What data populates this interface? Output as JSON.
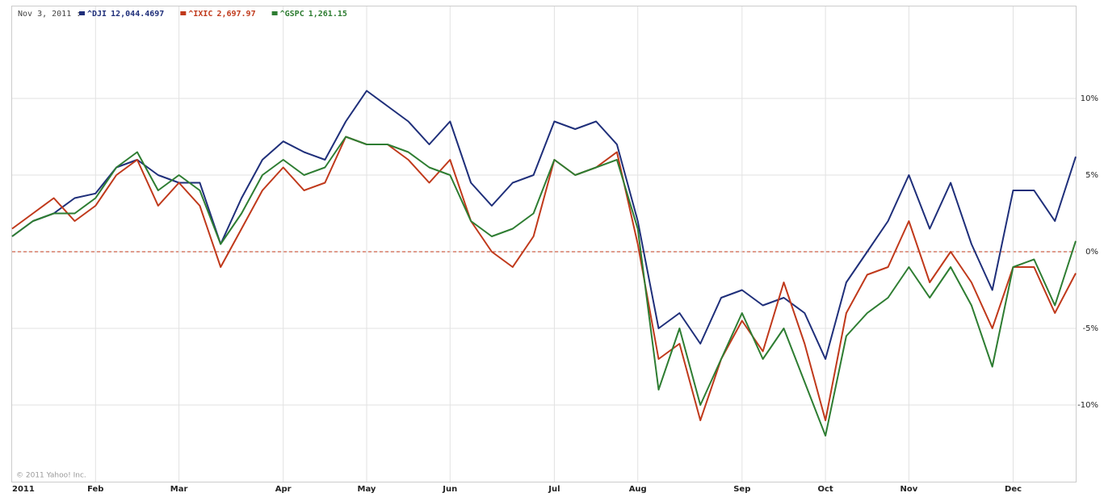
{
  "chart_data": {
    "type": "line",
    "annotation": "Nov 3, 2011 :",
    "credit": "© 2011 Yahoo! Inc.",
    "categories": [
      "2011",
      null,
      null,
      null,
      "Feb",
      null,
      null,
      null,
      "Mar",
      null,
      null,
      null,
      null,
      "Apr",
      null,
      null,
      null,
      "May",
      null,
      null,
      null,
      "Jun",
      null,
      null,
      null,
      null,
      "Jul",
      null,
      null,
      null,
      "Aug",
      null,
      null,
      null,
      null,
      "Sep",
      null,
      null,
      null,
      "Oct",
      null,
      null,
      null,
      "Nov",
      null,
      null,
      null,
      null,
      "Dec",
      null,
      null,
      null
    ],
    "series": [
      {
        "name": "^DJI",
        "legend_value": "12,044.4697",
        "color": "#1f2f7a",
        "values": [
          1,
          2,
          2.5,
          3.5,
          3.8,
          5.5,
          6,
          5,
          4.5,
          4.5,
          0.5,
          3.5,
          6,
          7.2,
          6.5,
          6,
          8.5,
          10.5,
          9.5,
          8.5,
          7,
          8.5,
          4.5,
          3,
          4.5,
          5,
          8.5,
          8,
          8.5,
          7,
          2,
          -5,
          -4,
          -6,
          -3,
          -2.5,
          -3.5,
          -3,
          -4,
          -7,
          -2,
          0,
          2,
          5,
          1.5,
          4.5,
          0.5,
          -2.5,
          4,
          4,
          2,
          6.2
        ]
      },
      {
        "name": "^IXIC",
        "legend_value": "2,697.97",
        "color": "#c0391b",
        "values": [
          1.5,
          2.5,
          3.5,
          2,
          3,
          5,
          6,
          3,
          4.5,
          3,
          -1,
          1.5,
          4,
          5.5,
          4,
          4.5,
          7.5,
          7,
          7,
          6,
          4.5,
          6,
          2,
          0,
          -1,
          1,
          6,
          5,
          5.5,
          6.5,
          0.5,
          -7,
          -6,
          -11,
          -7,
          -4.5,
          -6.5,
          -2,
          -6,
          -11,
          -4,
          -1.5,
          -1,
          2,
          -2,
          0,
          -2,
          -5,
          -1,
          -1,
          -4,
          -1.4
        ]
      },
      {
        "name": "^GSPC",
        "legend_value": "1,261.15",
        "color": "#2e7d32",
        "values": [
          1,
          2,
          2.5,
          2.5,
          3.5,
          5.5,
          6.5,
          4,
          5,
          4,
          0.5,
          2.5,
          5,
          6,
          5,
          5.5,
          7.5,
          7,
          7,
          6.5,
          5.5,
          5,
          2,
          1,
          1.5,
          2.5,
          6,
          5,
          5.5,
          6,
          1.5,
          -9,
          -5,
          -10,
          -7,
          -4,
          -7,
          -5,
          -8.5,
          -12,
          -5.5,
          -4,
          -3,
          -1,
          -3,
          -1,
          -3.5,
          -7.5,
          -1,
          -0.5,
          -3.5,
          0.7
        ]
      }
    ],
    "ylim": [
      -15,
      16
    ],
    "yticks": [
      {
        "value": -10,
        "label": "-10%"
      },
      {
        "value": -5,
        "label": "-5%"
      },
      {
        "value": 0,
        "label": "0%"
      },
      {
        "value": 5,
        "label": "5%"
      },
      {
        "value": 10,
        "label": "10%"
      }
    ],
    "grid": true,
    "zero_line": true
  }
}
